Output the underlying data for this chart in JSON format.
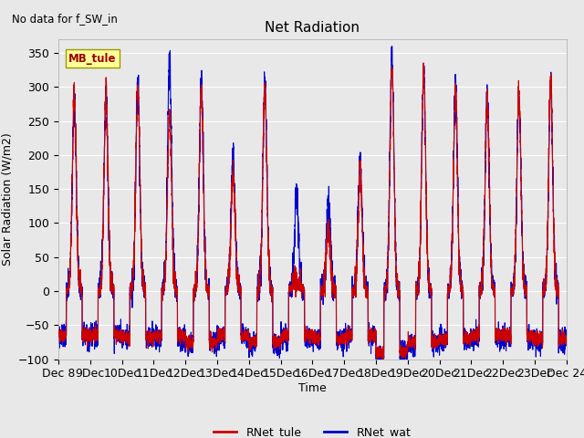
{
  "title": "Net Radiation",
  "suptitle_left": "No data for f_SW_in",
  "ylabel": "Solar Radiation (W/m2)",
  "xlabel": "Time",
  "ylim": [
    -100,
    370
  ],
  "plot_bg_color": "#e8e8e8",
  "color_tule": "#cc0000",
  "color_wat": "#0000cc",
  "lw_tule": 0.8,
  "lw_wat": 0.8,
  "legend_label_tule": "RNet_tule",
  "legend_label_wat": "RNet_wat",
  "box_label": "MB_tule",
  "n_days": 16,
  "start_day": 8,
  "yticks": [
    -100,
    -50,
    0,
    50,
    100,
    150,
    200,
    250,
    300,
    350
  ],
  "grid_color": "#ffffff",
  "legend_box_color": "#ffff99",
  "legend_box_edge": "#999900",
  "figsize": [
    6.4,
    4.8
  ],
  "dpi": 100
}
